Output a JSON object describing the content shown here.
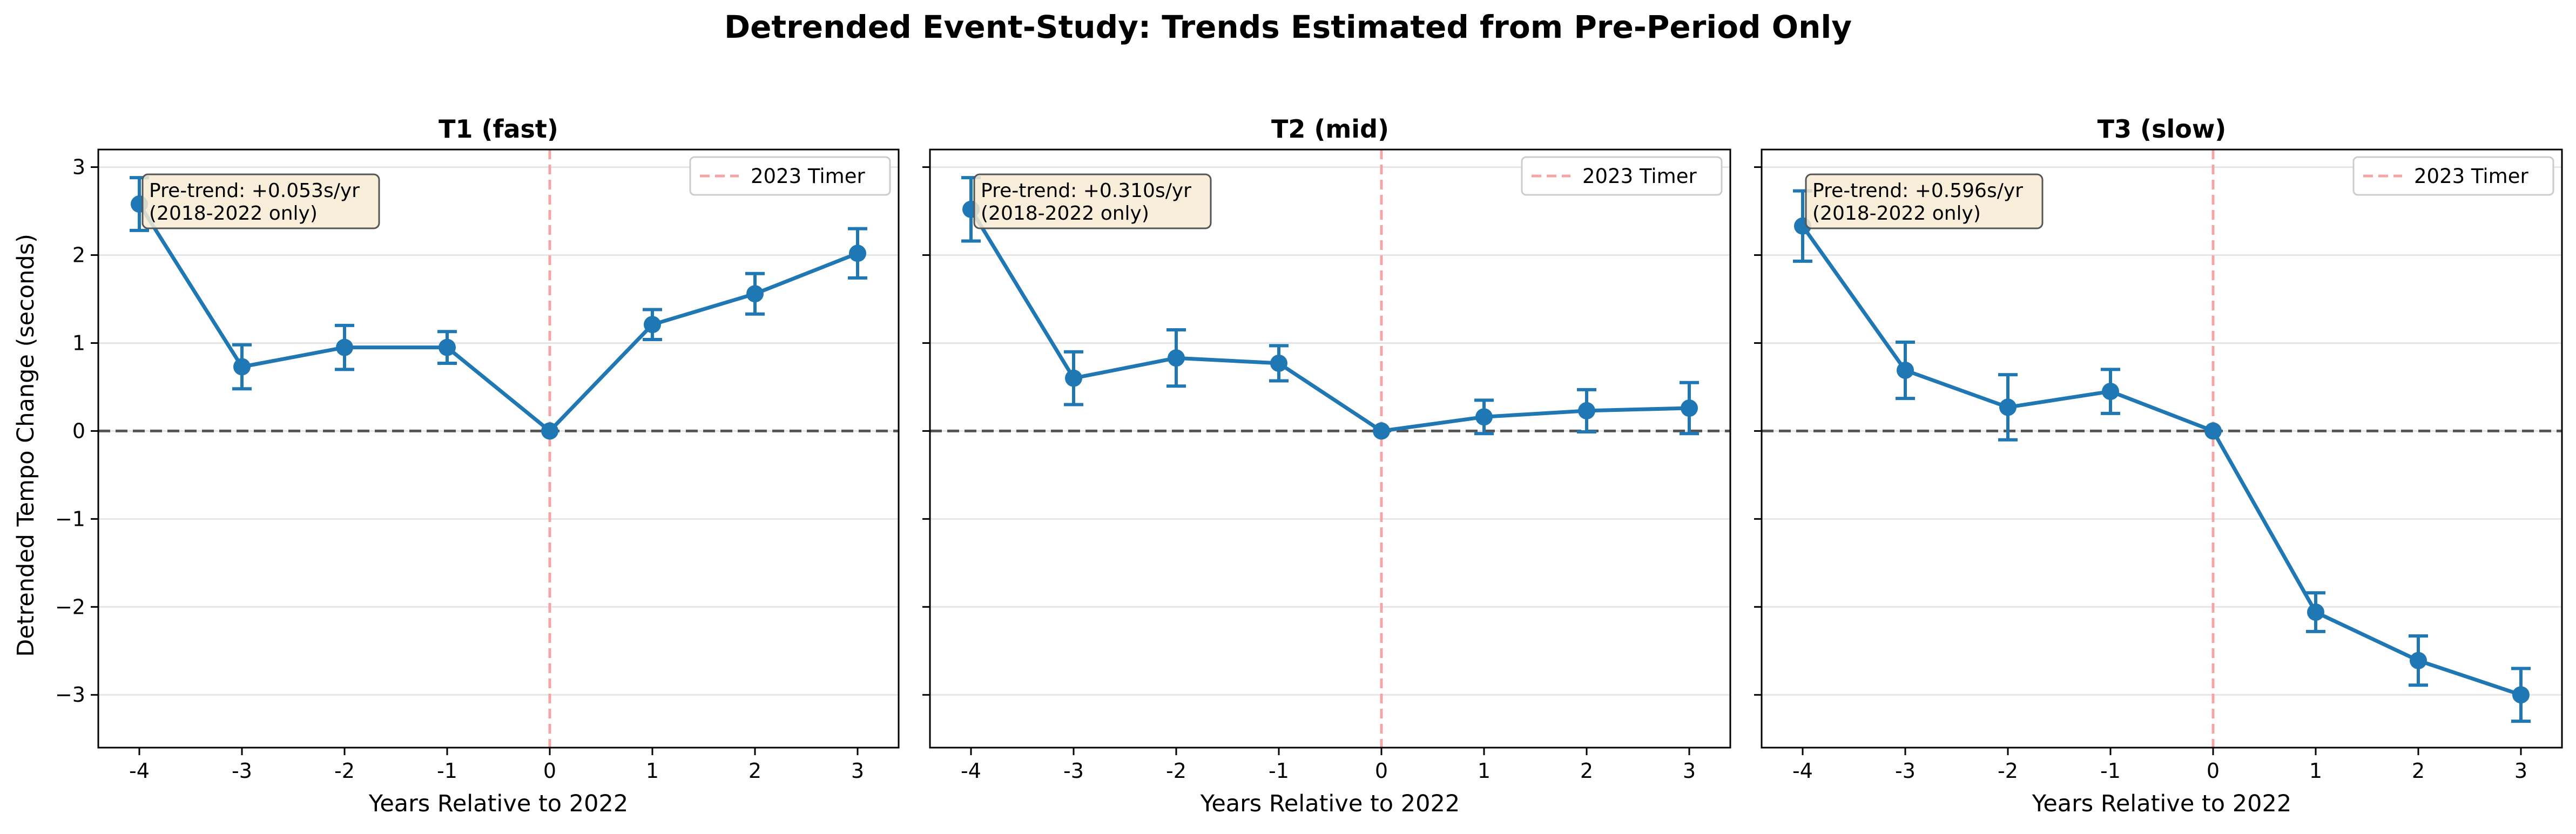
{
  "figure": {
    "title": "Detrended Event-Study: Trends Estimated from Pre-Period Only",
    "xlabel": "Years Relative to 2022",
    "ylabel": "Detrended Tempo Change (seconds)"
  },
  "colors": {
    "series": "#1f77b4",
    "zero_line": "#555555",
    "timer_line": "#f4a6a6",
    "annotation_fill": "#f7ebd2",
    "grid": "#e6e6e6"
  },
  "chart_data": [
    {
      "type": "line",
      "title": "T1 (fast)",
      "xlabel": "Years Relative to 2022",
      "ylabel": "Detrended Tempo Change (seconds)",
      "x": [
        -4,
        -3,
        -2,
        -1,
        0,
        1,
        2,
        3
      ],
      "y": [
        2.58,
        0.73,
        0.95,
        0.95,
        0.0,
        1.21,
        1.56,
        2.02
      ],
      "err": [
        0.3,
        0.25,
        0.25,
        0.18,
        0.0,
        0.17,
        0.23,
        0.28
      ],
      "xlim": [
        -4.4,
        3.4
      ],
      "ylim": [
        -3.6,
        3.2
      ],
      "xticks": [
        -4,
        -3,
        -2,
        -1,
        0,
        1,
        2,
        3
      ],
      "yticks": [
        -3,
        -2,
        -1,
        0,
        1,
        2,
        3
      ],
      "vline_x": 0,
      "hline_y": 0,
      "grid": "y",
      "legend": {
        "label": "2023 Timer",
        "position": "top-right"
      },
      "annotation": {
        "line1": "Pre-trend: +0.053s/yr",
        "line2": "(2018-2022 only)"
      }
    },
    {
      "type": "line",
      "title": "T2 (mid)",
      "xlabel": "Years Relative to 2022",
      "x": [
        -4,
        -3,
        -2,
        -1,
        0,
        1,
        2,
        3
      ],
      "y": [
        2.52,
        0.6,
        0.83,
        0.77,
        0.0,
        0.16,
        0.23,
        0.26
      ],
      "err": [
        0.36,
        0.3,
        0.32,
        0.2,
        0.0,
        0.19,
        0.24,
        0.29
      ],
      "xlim": [
        -4.4,
        3.4
      ],
      "ylim": [
        -3.6,
        3.2
      ],
      "xticks": [
        -4,
        -3,
        -2,
        -1,
        0,
        1,
        2,
        3
      ],
      "yticks": [
        -3,
        -2,
        -1,
        0,
        1,
        2,
        3
      ],
      "vline_x": 0,
      "hline_y": 0,
      "grid": "y",
      "legend": {
        "label": "2023 Timer",
        "position": "top-right"
      },
      "annotation": {
        "line1": "Pre-trend: +0.310s/yr",
        "line2": "(2018-2022 only)"
      }
    },
    {
      "type": "line",
      "title": "T3 (slow)",
      "xlabel": "Years Relative to 2022",
      "x": [
        -4,
        -3,
        -2,
        -1,
        0,
        1,
        2,
        3
      ],
      "y": [
        2.33,
        0.69,
        0.27,
        0.45,
        0.0,
        -2.06,
        -2.61,
        -3.0
      ],
      "err": [
        0.4,
        0.32,
        0.37,
        0.25,
        0.0,
        0.22,
        0.28,
        0.3
      ],
      "xlim": [
        -4.4,
        3.4
      ],
      "ylim": [
        -3.6,
        3.2
      ],
      "xticks": [
        -4,
        -3,
        -2,
        -1,
        0,
        1,
        2,
        3
      ],
      "yticks": [
        -3,
        -2,
        -1,
        0,
        1,
        2,
        3
      ],
      "vline_x": 0,
      "hline_y": 0,
      "grid": "y",
      "legend": {
        "label": "2023 Timer",
        "position": "top-right"
      },
      "annotation": {
        "line1": "Pre-trend: +0.596s/yr",
        "line2": "(2018-2022 only)"
      }
    }
  ]
}
